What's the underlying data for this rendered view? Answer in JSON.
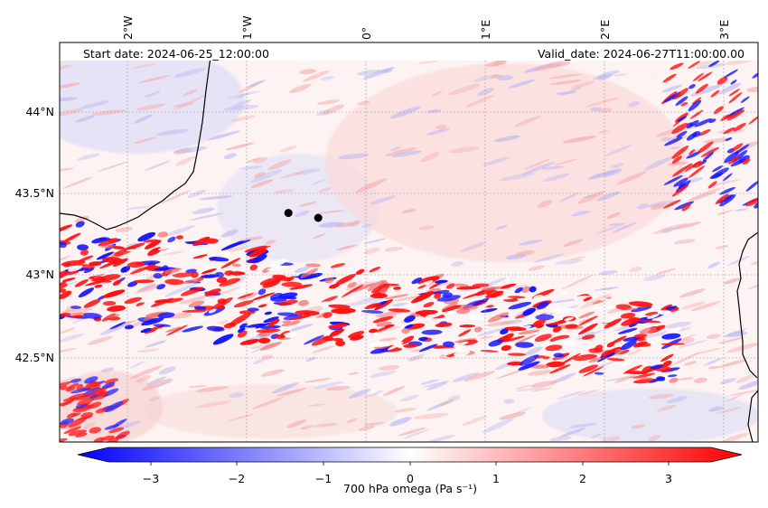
{
  "header": {
    "start_label": "Start date: 2024-06-25_12:00:00",
    "valid_label": "Valid_date: 2024-06-27T11:00:00.00"
  },
  "map": {
    "lon_ticks": [
      "2°W",
      "1°W",
      "0°",
      "1°E",
      "2°E",
      "3°E"
    ],
    "lat_ticks": [
      "44°N",
      "43.5°N",
      "43°N",
      "42.5°N"
    ],
    "markers": [
      {
        "lon": -0.65,
        "lat": 43.38
      },
      {
        "lon": -0.4,
        "lat": 43.35
      }
    ],
    "field_range": [
      -3.5,
      3.5
    ]
  },
  "colorbar": {
    "label": "700 hPa omega (Pa s⁻¹)",
    "ticks": [
      "−3",
      "−2",
      "−1",
      "0",
      "1",
      "2",
      "3"
    ],
    "min": -3.5,
    "max": 3.5,
    "colors": {
      "negative": "#0000ff",
      "mid": "#ffffff",
      "positive": "#ff0000"
    }
  }
}
